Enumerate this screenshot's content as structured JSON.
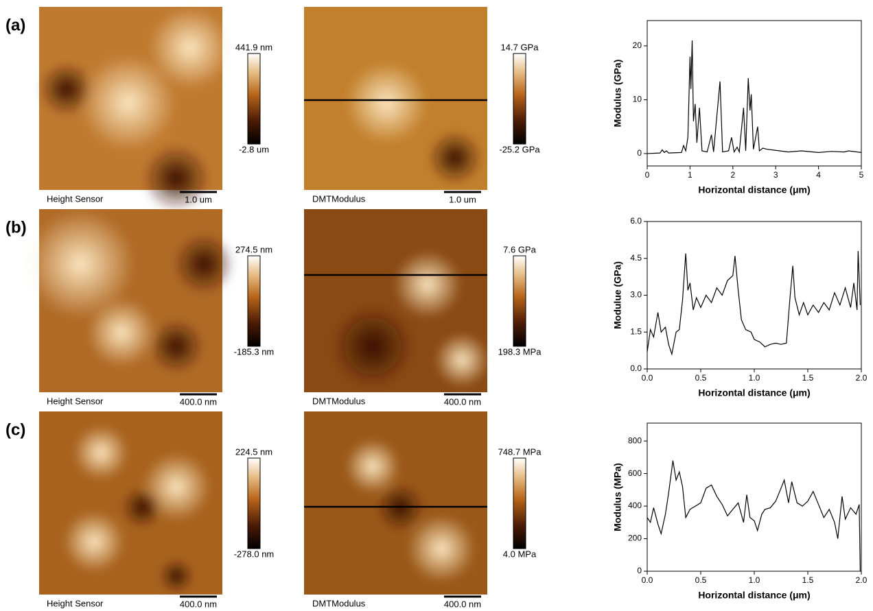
{
  "panels": [
    {
      "label": "(a)",
      "height": {
        "caption": "Height Sensor",
        "scale_bar": "1.0 um",
        "scale_max": "441.9 nm",
        "scale_min": "-2.8 um"
      },
      "modulus": {
        "caption": "DMTModulus",
        "scale_bar": "1.0 um",
        "scale_max": "14.7 GPa",
        "scale_min": "-25.2 GPa"
      }
    },
    {
      "label": "(b)",
      "height": {
        "caption": "Height Sensor",
        "scale_bar": "400.0 nm",
        "scale_max": "274.5 nm",
        "scale_min": "-185.3 nm"
      },
      "modulus": {
        "caption": "DMTModulus",
        "scale_bar": "400.0 nm",
        "scale_max": "7.6 GPa",
        "scale_min": "198.3 MPa"
      }
    },
    {
      "label": "(c)",
      "height": {
        "caption": "Height Sensor",
        "scale_bar": "400.0 nm",
        "scale_max": "224.5 nm",
        "scale_min": "-278.0 nm"
      },
      "modulus": {
        "caption": "DMTModulus",
        "scale_bar": "400.0 nm",
        "scale_max": "748.7 MPa",
        "scale_min": "4.0 MPa"
      }
    }
  ],
  "chart_data": [
    {
      "type": "line",
      "x_label": "Horizontal distance (μm)",
      "y_label": "Modulus (GPa)",
      "color": "#000000",
      "x": [
        0,
        0.3,
        0.35,
        0.4,
        0.45,
        0.5,
        0.8,
        0.85,
        0.9,
        0.95,
        1.0,
        1.02,
        1.05,
        1.08,
        1.12,
        1.16,
        1.22,
        1.28,
        1.4,
        1.5,
        1.55,
        1.7,
        1.76,
        1.9,
        1.97,
        2.03,
        2.1,
        2.15,
        2.25,
        2.3,
        2.36,
        2.4,
        2.43,
        2.48,
        2.58,
        2.62,
        2.7,
        2.8,
        3.0,
        3.3,
        3.6,
        4.0,
        4.3,
        4.6,
        4.7,
        5.0
      ],
      "values": [
        0,
        0.1,
        0.7,
        0.2,
        0.5,
        0.1,
        0.2,
        1.5,
        0.5,
        3,
        18,
        12,
        21,
        6,
        9.2,
        2,
        8.5,
        0.5,
        0.3,
        3.5,
        0.3,
        13.4,
        0.3,
        0.5,
        3,
        0.3,
        1.2,
        0.3,
        8.5,
        0.5,
        14,
        8,
        11,
        0.8,
        5,
        0.5,
        1,
        0.8,
        0.6,
        0.3,
        0.5,
        0.2,
        0.4,
        0.3,
        0.5,
        0.2
      ],
      "xlim": [
        0,
        5
      ],
      "ylim": [
        -2.3,
        24.7
      ],
      "xticks": [
        0,
        1,
        2,
        3,
        4,
        5
      ],
      "yticks": [
        0,
        10,
        20
      ]
    },
    {
      "type": "line",
      "x_label": "Horizontal distance (μm)",
      "y_label": "Modulue (GPa)",
      "color": "#000000",
      "x": [
        0,
        0.03,
        0.06,
        0.1,
        0.13,
        0.17,
        0.2,
        0.23,
        0.27,
        0.3,
        0.33,
        0.36,
        0.38,
        0.4,
        0.43,
        0.46,
        0.5,
        0.55,
        0.6,
        0.65,
        0.7,
        0.75,
        0.8,
        0.82,
        0.85,
        0.88,
        0.92,
        0.97,
        1.0,
        1.05,
        1.1,
        1.15,
        1.2,
        1.25,
        1.3,
        1.33,
        1.36,
        1.38,
        1.42,
        1.46,
        1.5,
        1.55,
        1.6,
        1.65,
        1.7,
        1.75,
        1.8,
        1.85,
        1.9,
        1.93,
        1.96,
        1.97,
        1.99
      ],
      "values": [
        0.7,
        1.6,
        1.3,
        2.3,
        1.5,
        1.7,
        1.0,
        0.6,
        1.5,
        1.6,
        2.8,
        4.7,
        3.2,
        3.5,
        2.4,
        2.9,
        2.5,
        3.0,
        2.7,
        3.3,
        3.0,
        3.6,
        3.8,
        4.6,
        3.2,
        2.0,
        1.6,
        1.5,
        1.2,
        1.1,
        0.9,
        1.0,
        1.05,
        1.0,
        1.05,
        2.7,
        4.2,
        2.9,
        2.2,
        2.7,
        2.2,
        2.6,
        2.3,
        2.7,
        2.4,
        3.1,
        2.6,
        3.3,
        2.5,
        3.5,
        2.4,
        4.8,
        2.6
      ],
      "xlim": [
        0,
        2
      ],
      "ylim": [
        0,
        6
      ],
      "xticks": [
        {
          "value": 0,
          "label": "0.0"
        },
        0.5,
        {
          "value": 1,
          "label": "1.0"
        },
        1.5,
        {
          "value": 2,
          "label": "2.0"
        }
      ],
      "yticks": [
        {
          "value": 0,
          "label": "0.0"
        },
        1.5,
        {
          "value": 3,
          "label": "3.0"
        },
        4.5,
        {
          "value": 6,
          "label": "6.0"
        }
      ]
    },
    {
      "type": "line",
      "x_label": "Horizontal distance (μm)",
      "y_label": "Modulus (MPa)",
      "color": "#000000",
      "x": [
        0,
        0.03,
        0.06,
        0.1,
        0.13,
        0.17,
        0.2,
        0.24,
        0.27,
        0.3,
        0.33,
        0.36,
        0.4,
        0.45,
        0.5,
        0.55,
        0.6,
        0.65,
        0.7,
        0.75,
        0.8,
        0.85,
        0.9,
        0.93,
        0.96,
        1.0,
        1.03,
        1.07,
        1.1,
        1.15,
        1.2,
        1.25,
        1.28,
        1.32,
        1.35,
        1.4,
        1.45,
        1.5,
        1.55,
        1.6,
        1.65,
        1.7,
        1.75,
        1.78,
        1.82,
        1.85,
        1.9,
        1.95,
        1.98,
        1.99
      ],
      "values": [
        330,
        300,
        390,
        290,
        230,
        350,
        480,
        680,
        560,
        610,
        520,
        330,
        380,
        400,
        420,
        510,
        530,
        460,
        410,
        340,
        380,
        420,
        300,
        470,
        330,
        310,
        250,
        350,
        380,
        390,
        430,
        510,
        560,
        420,
        550,
        420,
        400,
        430,
        490,
        410,
        330,
        380,
        300,
        200,
        460,
        320,
        390,
        350,
        410,
        0
      ],
      "xlim": [
        0,
        2
      ],
      "ylim": [
        0,
        910
      ],
      "xticks": [
        {
          "value": 0,
          "label": "0.0"
        },
        0.5,
        {
          "value": 1,
          "label": "1.0"
        },
        1.5,
        {
          "value": 2,
          "label": "2.0"
        }
      ],
      "yticks": [
        0,
        200,
        400,
        600,
        800
      ]
    }
  ]
}
